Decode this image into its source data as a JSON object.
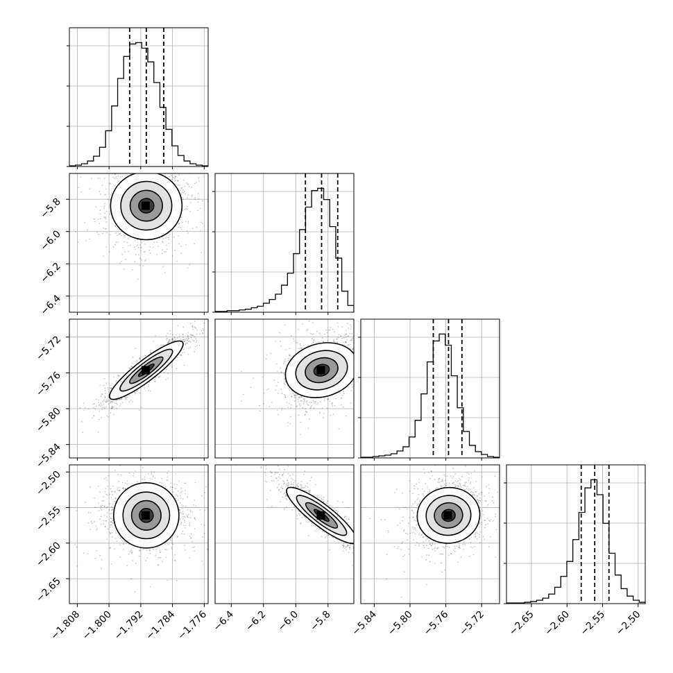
{
  "figure": {
    "title": "",
    "grid": true
  },
  "chart_data": {
    "type": "corner",
    "parameters": [
      {
        "label": "",
        "range": [
          -1.81,
          -1.775
        ],
        "ticks": [
          -1.808,
          -1.8,
          -1.792,
          -1.784,
          -1.776
        ],
        "tick_labels": [
          "−1.808",
          "−1.800",
          "−1.792",
          "−1.784",
          "−1.776"
        ],
        "quantiles": [
          -1.7948,
          -1.7906,
          -1.7862
        ]
      },
      {
        "label": "",
        "range": [
          -6.5,
          -5.64
        ],
        "ticks": [
          -6.4,
          -6.2,
          -6.0,
          -5.8
        ],
        "tick_labels": [
          "−6.4",
          "−6.2",
          "−6.0",
          "−5.8"
        ],
        "quantiles": [
          -5.94,
          -5.84,
          -5.74
        ]
      },
      {
        "label": "",
        "range": [
          -5.855,
          -5.7
        ],
        "ticks": [
          -5.84,
          -5.8,
          -5.76,
          -5.72
        ],
        "tick_labels": [
          "−5.84",
          "−5.80",
          "−5.76",
          "−5.72"
        ],
        "quantiles": [
          -5.774,
          -5.757,
          -5.742
        ]
      },
      {
        "label": "",
        "range": [
          -2.685,
          -2.49
        ],
        "ticks": [
          -2.65,
          -2.6,
          -2.55,
          -2.5
        ],
        "tick_labels": [
          "−2.65",
          "−2.60",
          "−2.55",
          "−2.50"
        ],
        "quantiles": [
          -2.58,
          -2.561,
          -2.541
        ]
      }
    ],
    "histograms": [
      [
        1,
        2,
        4,
        8,
        15,
        28,
        52,
        88,
        128,
        160,
        178,
        180,
        172,
        152,
        122,
        86,
        54,
        30,
        16,
        8,
        4,
        2,
        1
      ],
      [
        1,
        1,
        2,
        2,
        3,
        4,
        6,
        8,
        12,
        17,
        24,
        36,
        52,
        78,
        110,
        140,
        162,
        165,
        150,
        114,
        72,
        28,
        9
      ],
      [
        1,
        1,
        2,
        3,
        4,
        6,
        10,
        16,
        30,
        54,
        92,
        138,
        168,
        178,
        162,
        118,
        72,
        38,
        18,
        9,
        5,
        2,
        1
      ],
      [
        1,
        1,
        1,
        2,
        3,
        5,
        8,
        14,
        24,
        40,
        62,
        94,
        134,
        170,
        182,
        160,
        118,
        74,
        42,
        22,
        11,
        5,
        2
      ]
    ],
    "correlations": {
      "1_0": 0.05,
      "2_0": 0.92,
      "2_1": 0.32,
      "3_0": 0.0,
      "3_1": -0.9,
      "3_2": 0.12
    }
  }
}
